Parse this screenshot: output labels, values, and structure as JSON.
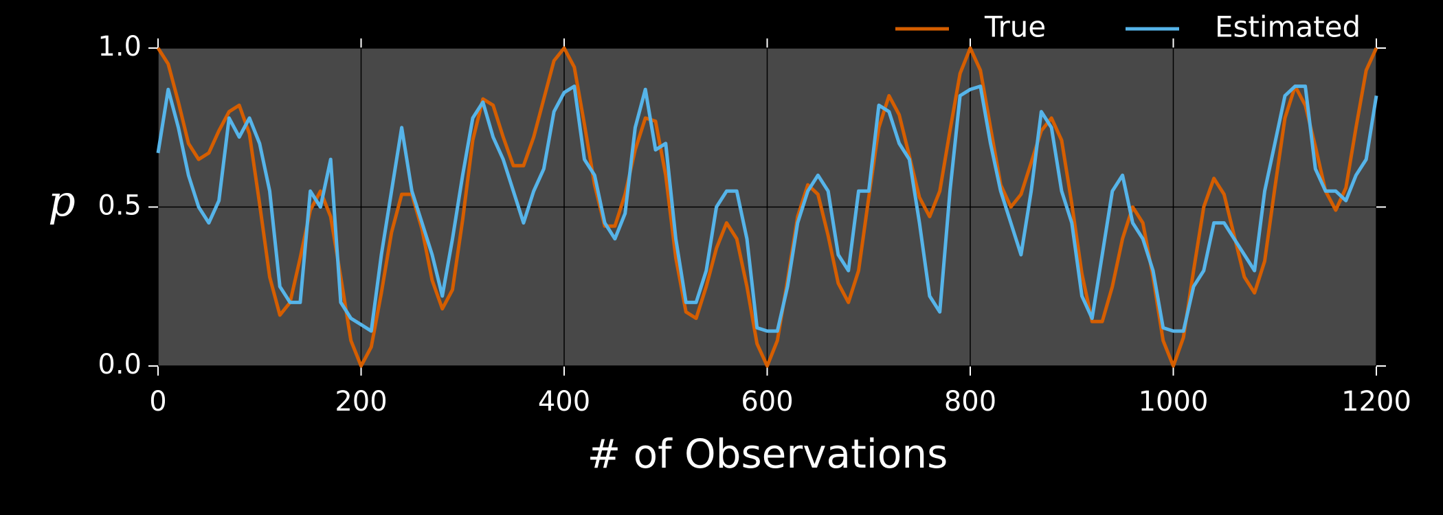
{
  "chart_data": {
    "type": "line",
    "x_label": "# of Observations",
    "y_label": "p",
    "x": [
      0,
      10,
      20,
      30,
      40,
      50,
      60,
      70,
      80,
      90,
      100,
      110,
      120,
      130,
      140,
      150,
      160,
      170,
      180,
      190,
      200,
      210,
      220,
      230,
      240,
      250,
      260,
      270,
      280,
      290,
      300,
      310,
      320,
      330,
      340,
      350,
      360,
      370,
      380,
      390,
      400,
      410,
      420,
      430,
      440,
      450,
      460,
      470,
      480,
      490,
      500,
      510,
      520,
      530,
      540,
      550,
      560,
      570,
      580,
      590,
      600,
      610,
      620,
      630,
      640,
      650,
      660,
      670,
      680,
      690,
      700,
      710,
      720,
      730,
      740,
      750,
      760,
      770,
      780,
      790,
      800,
      810,
      820,
      830,
      840,
      850,
      860,
      870,
      880,
      890,
      900,
      910,
      920,
      930,
      940,
      950,
      960,
      970,
      980,
      990,
      1000,
      1010,
      1020,
      1030,
      1040,
      1050,
      1060,
      1070,
      1080,
      1090,
      1100,
      1110,
      1120,
      1130,
      1140,
      1150,
      1160,
      1170,
      1180,
      1190,
      1200
    ],
    "series": [
      {
        "name": "True",
        "color": "#d55e00",
        "values": [
          1.0,
          0.95,
          0.83,
          0.7,
          0.65,
          0.67,
          0.74,
          0.8,
          0.82,
          0.73,
          0.51,
          0.28,
          0.16,
          0.2,
          0.34,
          0.49,
          0.55,
          0.47,
          0.28,
          0.08,
          0.0,
          0.06,
          0.23,
          0.42,
          0.54,
          0.54,
          0.43,
          0.27,
          0.18,
          0.24,
          0.46,
          0.71,
          0.84,
          0.82,
          0.72,
          0.63,
          0.63,
          0.72,
          0.84,
          0.96,
          1.0,
          0.94,
          0.76,
          0.57,
          0.44,
          0.44,
          0.54,
          0.68,
          0.78,
          0.77,
          0.6,
          0.34,
          0.17,
          0.15,
          0.25,
          0.37,
          0.45,
          0.4,
          0.25,
          0.07,
          0.0,
          0.08,
          0.27,
          0.47,
          0.57,
          0.54,
          0.41,
          0.26,
          0.2,
          0.3,
          0.53,
          0.75,
          0.85,
          0.79,
          0.66,
          0.53,
          0.47,
          0.55,
          0.74,
          0.92,
          1.0,
          0.93,
          0.75,
          0.57,
          0.5,
          0.54,
          0.64,
          0.74,
          0.78,
          0.71,
          0.51,
          0.29,
          0.14,
          0.14,
          0.25,
          0.4,
          0.5,
          0.45,
          0.28,
          0.08,
          0.0,
          0.09,
          0.3,
          0.5,
          0.59,
          0.54,
          0.41,
          0.28,
          0.23,
          0.33,
          0.56,
          0.78,
          0.88,
          0.82,
          0.69,
          0.55,
          0.49,
          0.56,
          0.75,
          0.93,
          1.0
        ]
      },
      {
        "name": "Estimated",
        "color": "#56b4e9",
        "values": [
          0.67,
          0.87,
          0.75,
          0.6,
          0.5,
          0.45,
          0.52,
          0.78,
          0.72,
          0.78,
          0.7,
          0.55,
          0.25,
          0.2,
          0.2,
          0.55,
          0.5,
          0.65,
          0.2,
          0.15,
          0.13,
          0.11,
          0.35,
          0.55,
          0.75,
          0.55,
          0.45,
          0.35,
          0.22,
          0.4,
          0.6,
          0.78,
          0.83,
          0.72,
          0.65,
          0.55,
          0.45,
          0.55,
          0.62,
          0.8,
          0.86,
          0.88,
          0.65,
          0.6,
          0.45,
          0.4,
          0.48,
          0.75,
          0.87,
          0.68,
          0.7,
          0.4,
          0.2,
          0.2,
          0.3,
          0.5,
          0.55,
          0.55,
          0.4,
          0.12,
          0.11,
          0.11,
          0.25,
          0.45,
          0.55,
          0.6,
          0.55,
          0.35,
          0.3,
          0.55,
          0.55,
          0.82,
          0.8,
          0.7,
          0.65,
          0.45,
          0.22,
          0.17,
          0.55,
          0.85,
          0.87,
          0.88,
          0.7,
          0.55,
          0.45,
          0.35,
          0.55,
          0.8,
          0.75,
          0.55,
          0.45,
          0.22,
          0.15,
          0.35,
          0.55,
          0.6,
          0.45,
          0.4,
          0.3,
          0.12,
          0.11,
          0.11,
          0.25,
          0.3,
          0.45,
          0.45,
          0.4,
          0.35,
          0.3,
          0.55,
          0.7,
          0.85,
          0.88,
          0.88,
          0.62,
          0.55,
          0.55,
          0.52,
          0.6,
          0.65,
          0.85
        ]
      }
    ],
    "xlim": [
      0,
      1200
    ],
    "xticks": [
      0,
      200,
      400,
      600,
      800,
      1000,
      1200
    ],
    "ylim": [
      0,
      1
    ],
    "yticks": [
      {
        "value": 0,
        "label": "0.0"
      },
      {
        "value": 0.5,
        "label": "0.5"
      },
      {
        "value": 1,
        "label": "1.0"
      }
    ],
    "grid": true,
    "legend": "top right",
    "plot_background": "#484848"
  }
}
